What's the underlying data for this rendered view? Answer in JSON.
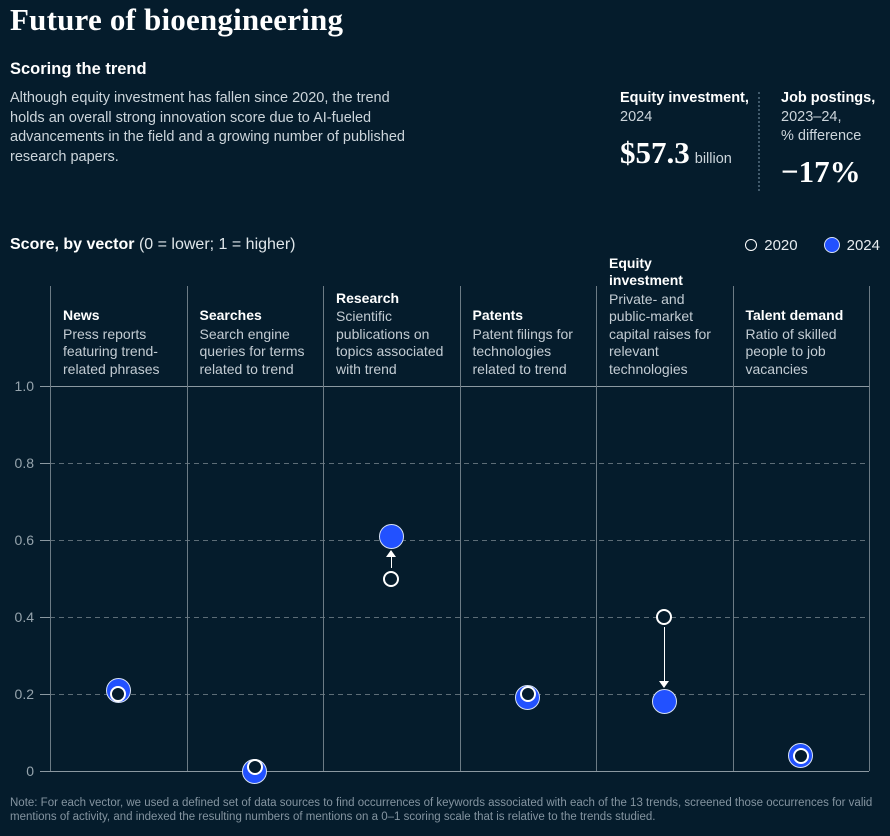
{
  "colors": {
    "background": "#051c2c",
    "accent_blue": "#2251ff",
    "solid_line": "#8b98a1",
    "dashed_line": "#5d6d77",
    "column_divider": "#6c7b85"
  },
  "header": {
    "title": "Future of bioengineering"
  },
  "summary": {
    "heading": "Scoring the trend",
    "body": "Although equity investment has fallen since 2020, the trend holds an overall strong innovation score due to AI-fueled advancements in the field and a growing number of published research papers.",
    "stats": [
      {
        "label_bold": "Equity investment,",
        "label_lines": [
          "2024"
        ],
        "value": "$57.3",
        "unit": "billion"
      },
      {
        "label_bold": "Job postings,",
        "label_lines": [
          "2023–24,",
          "% difference"
        ],
        "value": "−17%",
        "unit": ""
      }
    ]
  },
  "legend": {
    "title_bold": "Score, by vector",
    "title_rest": " (0 = lower; 1 = higher)",
    "items": [
      {
        "label": "2020",
        "type": "hollow"
      },
      {
        "label": "2024",
        "type": "filled"
      }
    ]
  },
  "chart_data": {
    "type": "scatter",
    "title": "Score, by vector (0 = lower; 1 = higher)",
    "ylabel": "Score",
    "ylim": [
      0,
      1
    ],
    "grid": "horizontal-dashed",
    "legend_position": "top-right",
    "yticks": [
      {
        "v": 0,
        "label": "0"
      },
      {
        "v": 0.2,
        "label": "0.2"
      },
      {
        "v": 0.4,
        "label": "0.4"
      },
      {
        "v": 0.6,
        "label": "0.6"
      },
      {
        "v": 0.8,
        "label": "0.8"
      },
      {
        "v": 1.0,
        "label": "1.0"
      }
    ],
    "series": [
      {
        "name": "2020"
      },
      {
        "name": "2024"
      }
    ],
    "vectors": [
      {
        "name": "News",
        "description": "Press reports featuring trend-related phrases",
        "score_2020": 0.2,
        "score_2024": 0.21,
        "arrow": null
      },
      {
        "name": "Searches",
        "description": "Search engine queries for terms related to trend",
        "score_2020": 0.01,
        "score_2024": 0.0,
        "arrow": null
      },
      {
        "name": "Research",
        "description": "Scientific publications on topics associated with trend",
        "score_2020": 0.5,
        "score_2024": 0.61,
        "arrow": "up"
      },
      {
        "name": "Patents",
        "description": "Patent filings for technologies related to trend",
        "score_2020": 0.2,
        "score_2024": 0.19,
        "arrow": null
      },
      {
        "name": "Equity investment",
        "description": "Private- and public-market capital raises for relevant technologies",
        "score_2020": 0.4,
        "score_2024": 0.18,
        "arrow": "down"
      },
      {
        "name": "Talent demand",
        "description": "Ratio of skilled people to job vacancies",
        "score_2020": 0.04,
        "score_2024": 0.04,
        "arrow": null
      }
    ]
  },
  "footnote": {
    "text": "Note: For each vector, we used a defined set of data sources to find occurrences of keywords associated with each of the 13 trends, screened those occurrences for valid mentions of activity, and indexed the resulting numbers of mentions on a 0–1 scoring scale that is relative to the trends studied."
  }
}
